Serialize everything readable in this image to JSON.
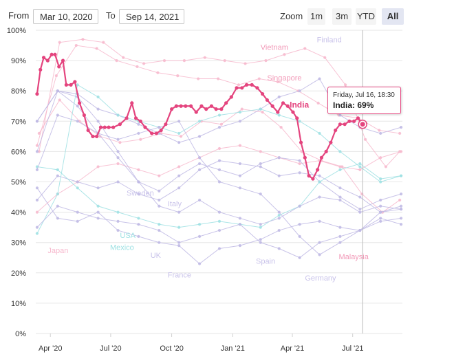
{
  "range": {
    "from_label": "From",
    "from_value": "Mar 10, 2020",
    "to_label": "To",
    "to_value": "Sep 14, 2021"
  },
  "zoom": {
    "label": "Zoom",
    "buttons": [
      "1m",
      "3m",
      "YTD",
      "All"
    ],
    "active": "All"
  },
  "tooltip": {
    "line1": "Friday, Jul 16, 18:30",
    "line2": "India: 69%"
  },
  "colors": {
    "highlight": "#e4447e",
    "pink_muted": "#f7b8cd",
    "purple_muted": "#beb8e4",
    "teal_muted": "#9ee1e3",
    "grid": "#e6e6e6"
  },
  "chart_data": {
    "type": "line",
    "title": "",
    "xlabel": "",
    "ylabel": "",
    "x_ticks": [
      "Apr '20",
      "Jul '20",
      "Oct '20",
      "Jan '21",
      "Apr '21",
      "Jul '21"
    ],
    "y_ticks": [
      "100%",
      "90%",
      "80%",
      "70%",
      "60%",
      "50%",
      "40%",
      "30%",
      "20%",
      "10%",
      "0%"
    ],
    "ylim": [
      0,
      100
    ],
    "x_range": [
      "2020-03-10",
      "2021-09-14"
    ],
    "grid": "horizontal",
    "legend": "none",
    "series": [
      {
        "name": "India",
        "highlight": true,
        "color": "#e4447e",
        "x": [
          "2020-03-12",
          "2020-03-17",
          "2020-03-22",
          "2020-03-28",
          "2020-04-03",
          "2020-04-08",
          "2020-04-14",
          "2020-04-20",
          "2020-04-25",
          "2020-05-02",
          "2020-05-08",
          "2020-05-15",
          "2020-05-22",
          "2020-05-28",
          "2020-06-04",
          "2020-06-10",
          "2020-06-16",
          "2020-06-22",
          "2020-06-28",
          "2020-07-05",
          "2020-07-15",
          "2020-07-25",
          "2020-08-02",
          "2020-08-08",
          "2020-08-15",
          "2020-08-22",
          "2020-09-01",
          "2020-09-08",
          "2020-09-15",
          "2020-09-22",
          "2020-10-01",
          "2020-10-08",
          "2020-10-15",
          "2020-10-22",
          "2020-10-30",
          "2020-11-07",
          "2020-11-15",
          "2020-11-22",
          "2020-11-30",
          "2020-12-07",
          "2020-12-15",
          "2020-12-22",
          "2020-12-30",
          "2021-01-07",
          "2021-01-15",
          "2021-01-22",
          "2021-01-30",
          "2021-02-07",
          "2021-02-15",
          "2021-02-22",
          "2021-03-02",
          "2021-03-10",
          "2021-03-18",
          "2021-03-25",
          "2021-04-02",
          "2021-04-08",
          "2021-04-14",
          "2021-04-20",
          "2021-04-26",
          "2021-05-02",
          "2021-05-09",
          "2021-05-15",
          "2021-05-22",
          "2021-05-29",
          "2021-06-05",
          "2021-06-12",
          "2021-06-19",
          "2021-06-26",
          "2021-07-03",
          "2021-07-09",
          "2021-07-16"
        ],
        "values": [
          79,
          87,
          91,
          90,
          92,
          92,
          88,
          90,
          82,
          82,
          83,
          76,
          72,
          67,
          65,
          65,
          68,
          68,
          68,
          68,
          69,
          71,
          76,
          71,
          70,
          68,
          66,
          66,
          67,
          69,
          74,
          75,
          75,
          75,
          75,
          73,
          75,
          74,
          75,
          74,
          74,
          76,
          78,
          81,
          81,
          82,
          82,
          81,
          79,
          77,
          75,
          73,
          76,
          75,
          73,
          71,
          63,
          58,
          52,
          51,
          54,
          58,
          60,
          63,
          67,
          69,
          69,
          70,
          70,
          71,
          69
        ]
      },
      {
        "name": "Singapore",
        "color": "#f7b8cd",
        "x": [
          "2020-03-12",
          "2020-04-10",
          "2020-05-10",
          "2020-06-10",
          "2020-07-10",
          "2020-08-10",
          "2020-09-10",
          "2020-10-10",
          "2020-11-10",
          "2020-12-10",
          "2021-01-10",
          "2021-02-10",
          "2021-03-10",
          "2021-04-10",
          "2021-05-10",
          "2021-06-10",
          "2021-07-10",
          "2021-08-10",
          "2021-09-10"
        ],
        "values": [
          62,
          85,
          95,
          94,
          90,
          88,
          86,
          85,
          84,
          84,
          82,
          84,
          83,
          80,
          76,
          72,
          71,
          67,
          66
        ]
      },
      {
        "name": "Vietnam",
        "color": "#f7b8cd",
        "x": [
          "2020-03-15",
          "2020-04-15",
          "2020-05-20",
          "2020-06-20",
          "2020-07-20",
          "2020-08-20",
          "2020-09-20",
          "2020-10-20",
          "2020-11-20",
          "2020-12-20",
          "2021-01-20",
          "2021-02-20",
          "2021-03-20",
          "2021-04-20",
          "2021-05-20",
          "2021-06-20",
          "2021-07-20",
          "2021-08-20",
          "2021-09-10"
        ],
        "values": [
          60,
          96,
          97,
          96,
          91,
          89,
          90,
          90,
          91,
          90,
          89,
          90,
          92,
          94,
          91,
          82,
          64,
          55,
          60
        ]
      },
      {
        "name": "Japan",
        "color": "#f7b8cd",
        "x": [
          "2020-03-12",
          "2020-04-12",
          "2020-05-12",
          "2020-06-12",
          "2020-07-12",
          "2020-08-12",
          "2020-09-12",
          "2020-10-12",
          "2020-11-12",
          "2020-12-12",
          "2021-01-12",
          "2021-02-12",
          "2021-03-12",
          "2021-04-12",
          "2021-05-12",
          "2021-06-12",
          "2021-07-12",
          "2021-08-12",
          "2021-09-12"
        ],
        "values": [
          40,
          46,
          50,
          55,
          56,
          54,
          52,
          55,
          58,
          61,
          62,
          60,
          58,
          56,
          57,
          55,
          54,
          58,
          60
        ]
      },
      {
        "name": "Malaysia",
        "color": "#f7b8cd",
        "x": [
          "2020-03-15",
          "2020-04-15",
          "2020-05-15",
          "2020-06-15",
          "2020-07-15",
          "2020-08-15",
          "2020-09-15",
          "2020-10-15",
          "2020-11-15",
          "2020-12-15",
          "2021-01-15",
          "2021-02-15",
          "2021-03-15",
          "2021-04-15",
          "2021-05-15",
          "2021-06-15",
          "2021-07-15",
          "2021-08-15",
          "2021-09-10"
        ],
        "values": [
          66,
          77,
          70,
          65,
          63,
          64,
          66,
          65,
          70,
          69,
          74,
          73,
          68,
          60,
          57,
          55,
          46,
          40,
          44
        ]
      },
      {
        "name": "Finland",
        "color": "#beb8e4",
        "x": [
          "2020-03-12",
          "2020-04-12",
          "2020-05-12",
          "2020-06-12",
          "2020-07-12",
          "2020-08-12",
          "2020-09-12",
          "2020-10-12",
          "2020-11-12",
          "2020-12-12",
          "2021-01-12",
          "2021-02-12",
          "2021-03-12",
          "2021-04-12",
          "2021-05-12",
          "2021-06-12",
          "2021-07-12",
          "2021-08-12",
          "2021-09-12"
        ],
        "values": [
          70,
          80,
          79,
          74,
          72,
          69,
          66,
          63,
          65,
          68,
          70,
          74,
          78,
          80,
          84,
          72,
          68,
          66,
          68
        ]
      },
      {
        "name": "Sweden",
        "color": "#beb8e4",
        "x": [
          "2020-03-12",
          "2020-04-12",
          "2020-05-12",
          "2020-06-12",
          "2020-07-12",
          "2020-08-12",
          "2020-09-12",
          "2020-10-12",
          "2020-11-12",
          "2020-12-12",
          "2021-01-12",
          "2021-02-12",
          "2021-03-12",
          "2021-04-12",
          "2021-05-12",
          "2021-06-12",
          "2021-07-12",
          "2021-08-12",
          "2021-09-12"
        ],
        "values": [
          44,
          52,
          50,
          48,
          50,
          46,
          44,
          48,
          54,
          57,
          56,
          55,
          52,
          53,
          52,
          48,
          45,
          40,
          41
        ]
      },
      {
        "name": "Italy",
        "color": "#beb8e4",
        "x": [
          "2020-03-12",
          "2020-04-12",
          "2020-05-12",
          "2020-06-12",
          "2020-07-12",
          "2020-08-12",
          "2020-09-12",
          "2020-10-12",
          "2020-11-12",
          "2020-12-12",
          "2021-01-12",
          "2021-02-12",
          "2021-03-12",
          "2021-04-12",
          "2021-05-12",
          "2021-06-12",
          "2021-07-12",
          "2021-08-12",
          "2021-09-12"
        ],
        "values": [
          70,
          80,
          75,
          66,
          58,
          50,
          47,
          52,
          56,
          54,
          52,
          56,
          58,
          57,
          50,
          45,
          41,
          44,
          46
        ]
      },
      {
        "name": "USA",
        "color": "#9ee1e3",
        "x": [
          "2020-03-12",
          "2020-04-12",
          "2020-05-12",
          "2020-06-12",
          "2020-07-12",
          "2020-08-12",
          "2020-09-12",
          "2020-10-12",
          "2020-11-12",
          "2020-12-12",
          "2021-01-12",
          "2021-02-12",
          "2021-03-12",
          "2021-04-12",
          "2021-05-12",
          "2021-06-12",
          "2021-07-12",
          "2021-08-12",
          "2021-09-12"
        ],
        "values": [
          55,
          54,
          48,
          42,
          40,
          38,
          36,
          35,
          36,
          37,
          36,
          35,
          39,
          42,
          50,
          54,
          56,
          51,
          52
        ]
      },
      {
        "name": "Mexico",
        "color": "#9ee1e3",
        "x": [
          "2020-03-12",
          "2020-04-12",
          "2020-05-12",
          "2020-06-12",
          "2020-07-12",
          "2020-08-12",
          "2020-09-12",
          "2020-10-12",
          "2020-11-12",
          "2020-12-12",
          "2021-01-12",
          "2021-02-12",
          "2021-03-12",
          "2021-04-12",
          "2021-05-12",
          "2021-06-12",
          "2021-07-12",
          "2021-08-12",
          "2021-09-12"
        ],
        "values": [
          33,
          46,
          82,
          78,
          72,
          70,
          68,
          66,
          70,
          72,
          73,
          74,
          72,
          70,
          66,
          60,
          55,
          50,
          52
        ]
      },
      {
        "name": "UK",
        "color": "#beb8e4",
        "x": [
          "2020-03-12",
          "2020-04-12",
          "2020-05-12",
          "2020-06-12",
          "2020-07-12",
          "2020-08-12",
          "2020-09-12",
          "2020-10-12",
          "2020-11-12",
          "2020-12-12",
          "2021-01-12",
          "2021-02-12",
          "2021-03-12",
          "2021-04-12",
          "2021-05-12",
          "2021-06-12",
          "2021-07-12",
          "2021-08-12",
          "2021-09-12"
        ],
        "values": [
          60,
          80,
          78,
          70,
          60,
          50,
          42,
          40,
          44,
          40,
          38,
          36,
          38,
          42,
          45,
          44,
          40,
          42,
          41
        ]
      },
      {
        "name": "France",
        "color": "#beb8e4",
        "x": [
          "2020-03-12",
          "2020-04-12",
          "2020-05-12",
          "2020-06-12",
          "2020-07-12",
          "2020-08-12",
          "2020-09-12",
          "2020-10-12",
          "2020-11-12",
          "2020-12-12",
          "2021-01-12",
          "2021-02-12",
          "2021-03-12",
          "2021-04-12",
          "2021-05-12",
          "2021-06-12",
          "2021-07-12",
          "2021-08-12",
          "2021-09-12"
        ],
        "values": [
          48,
          38,
          37,
          40,
          34,
          32,
          30,
          29,
          23,
          28,
          29,
          31,
          34,
          36,
          37,
          35,
          34,
          37,
          38
        ]
      },
      {
        "name": "Spain",
        "color": "#beb8e4",
        "x": [
          "2020-03-12",
          "2020-04-12",
          "2020-05-12",
          "2020-06-12",
          "2020-07-12",
          "2020-08-12",
          "2020-09-12",
          "2020-10-12",
          "2020-11-12",
          "2020-12-12",
          "2021-01-12",
          "2021-02-12",
          "2021-03-12",
          "2021-04-12",
          "2021-05-12",
          "2021-06-12",
          "2021-07-12",
          "2021-08-12",
          "2021-09-12"
        ],
        "values": [
          35,
          42,
          40,
          38,
          37,
          36,
          34,
          30,
          32,
          34,
          36,
          30,
          28,
          25,
          30,
          32,
          34,
          38,
          36
        ]
      },
      {
        "name": "Germany",
        "color": "#beb8e4",
        "x": [
          "2020-03-12",
          "2020-04-12",
          "2020-05-12",
          "2020-06-12",
          "2020-07-12",
          "2020-08-12",
          "2020-09-12",
          "2020-10-12",
          "2020-11-12",
          "2020-12-12",
          "2021-01-12",
          "2021-02-12",
          "2021-03-12",
          "2021-04-12",
          "2021-05-12",
          "2021-06-12",
          "2021-07-12",
          "2021-08-12",
          "2021-09-12"
        ],
        "values": [
          54,
          72,
          70,
          66,
          64,
          66,
          68,
          70,
          58,
          50,
          48,
          46,
          40,
          32,
          26,
          30,
          34,
          40,
          42
        ]
      }
    ],
    "vertical_marker": "2021-07-16"
  }
}
